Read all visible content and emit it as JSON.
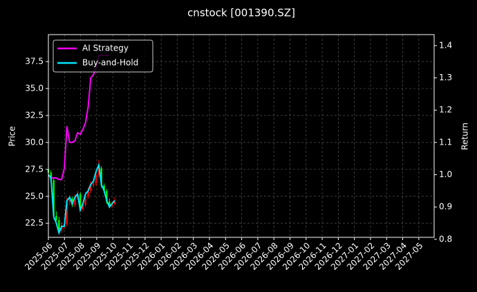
{
  "chart_data": {
    "type": "candlestick",
    "title": "cnstock [001390.SZ]",
    "y_label": "Price",
    "y2_label": "Return",
    "x": [
      0,
      0.16,
      0.33,
      0.49,
      0.66,
      0.82,
      0.99,
      1.15,
      1.32,
      1.48,
      1.65,
      1.81,
      1.98,
      2.14,
      2.3,
      2.47,
      2.63,
      2.8,
      2.96,
      3.13,
      3.29,
      3.46,
      3.62,
      3.79,
      3.95,
      4.12
    ],
    "candles": {
      "open": [
        27.5,
        27.2,
        26.5,
        23.2,
        22.8,
        21.8,
        22.3,
        22.4,
        24.5,
        24.8,
        24.2,
        24.9,
        25.2,
        23.8,
        24.2,
        25.0,
        25.5,
        26.0,
        26.2,
        27.0,
        27.6,
        26.0,
        25.5,
        24.5,
        24.1,
        24.3
      ],
      "high": [
        27.8,
        27.4,
        26.7,
        23.6,
        23.1,
        22.6,
        22.7,
        24.9,
        25.1,
        25.0,
        25.2,
        25.5,
        25.4,
        24.5,
        25.4,
        25.8,
        26.4,
        26.5,
        27.2,
        28.4,
        27.8,
        26.2,
        25.7,
        24.8,
        24.5,
        24.9
      ],
      "low": [
        27.0,
        26.3,
        22.9,
        22.4,
        21.5,
        21.6,
        22.0,
        22.2,
        24.2,
        24.0,
        24.0,
        24.7,
        23.6,
        23.6,
        24.0,
        24.8,
        25.3,
        25.8,
        26.0,
        26.8,
        25.8,
        25.3,
        24.3,
        23.9,
        23.9,
        24.2
      ],
      "close": [
        27.2,
        26.5,
        23.2,
        22.8,
        21.8,
        22.3,
        22.4,
        24.5,
        24.8,
        24.2,
        24.9,
        25.2,
        23.8,
        24.2,
        25.0,
        25.5,
        26.0,
        26.2,
        27.0,
        27.6,
        26.0,
        25.5,
        24.5,
        24.1,
        24.3,
        24.6
      ],
      "up_color": "#ff0000",
      "down_color": "#00ff00"
    },
    "series": [
      {
        "name": "AI Strategy",
        "color": "#ff00ff",
        "axis": "y2",
        "values": [
          1.0,
          0.99,
          0.99,
          0.99,
          0.985,
          0.985,
          1.02,
          1.15,
          1.1,
          1.1,
          1.105,
          1.13,
          1.125,
          1.14,
          1.16,
          1.21,
          1.3,
          1.31,
          1.33,
          1.37,
          1.37,
          1.37,
          1.37,
          1.37,
          null,
          null
        ]
      },
      {
        "name": "Buy-and-Hold",
        "color": "#00e5ff",
        "axis": "y2",
        "values": [
          1.0,
          0.99,
          0.87,
          0.85,
          0.82,
          0.84,
          0.84,
          0.92,
          0.93,
          0.91,
          0.93,
          0.94,
          0.89,
          0.91,
          0.94,
          0.95,
          0.97,
          0.98,
          1.01,
          1.03,
          0.97,
          0.95,
          0.92,
          0.9,
          0.91,
          0.92
        ]
      }
    ],
    "xlim": [
      0,
      23.95
    ],
    "xticks": [
      {
        "value": 0,
        "label": "2025-06"
      },
      {
        "value": 1,
        "label": "2025-07"
      },
      {
        "value": 2,
        "label": "2025-08"
      },
      {
        "value": 3,
        "label": "2025-09"
      },
      {
        "value": 4,
        "label": "2025-10"
      },
      {
        "value": 5,
        "label": "2025-11"
      },
      {
        "value": 6,
        "label": "2025-12"
      },
      {
        "value": 7,
        "label": "2026-01"
      },
      {
        "value": 8,
        "label": "2026-02"
      },
      {
        "value": 9,
        "label": "2026-03"
      },
      {
        "value": 10,
        "label": "2026-04"
      },
      {
        "value": 11,
        "label": "2026-05"
      },
      {
        "value": 12,
        "label": "2026-06"
      },
      {
        "value": 13,
        "label": "2026-07"
      },
      {
        "value": 14,
        "label": "2026-08"
      },
      {
        "value": 15,
        "label": "2026-09"
      },
      {
        "value": 16,
        "label": "2026-10"
      },
      {
        "value": 17,
        "label": "2026-11"
      },
      {
        "value": 18,
        "label": "2026-12"
      },
      {
        "value": 19,
        "label": "2027-01"
      },
      {
        "value": 20,
        "label": "2027-02"
      },
      {
        "value": 21,
        "label": "2027-03"
      },
      {
        "value": 22,
        "label": "2027-04"
      },
      {
        "value": 23,
        "label": "2027-05"
      }
    ],
    "ylim": [
      21.2,
      40.0
    ],
    "yticks": [
      22.5,
      {
        "value": 25,
        "label": "25.0"
      },
      27.5,
      {
        "value": 30,
        "label": "30.0"
      },
      32.5,
      {
        "value": 35,
        "label": "35.0"
      },
      37.5
    ],
    "y2lim": [
      0.806,
      1.434
    ],
    "y2ticks": [
      0.8,
      0.9,
      {
        "value": 1,
        "label": "1.0"
      },
      1.1,
      1.2,
      1.3,
      1.4
    ],
    "grid": true,
    "legend": "upper-left"
  }
}
